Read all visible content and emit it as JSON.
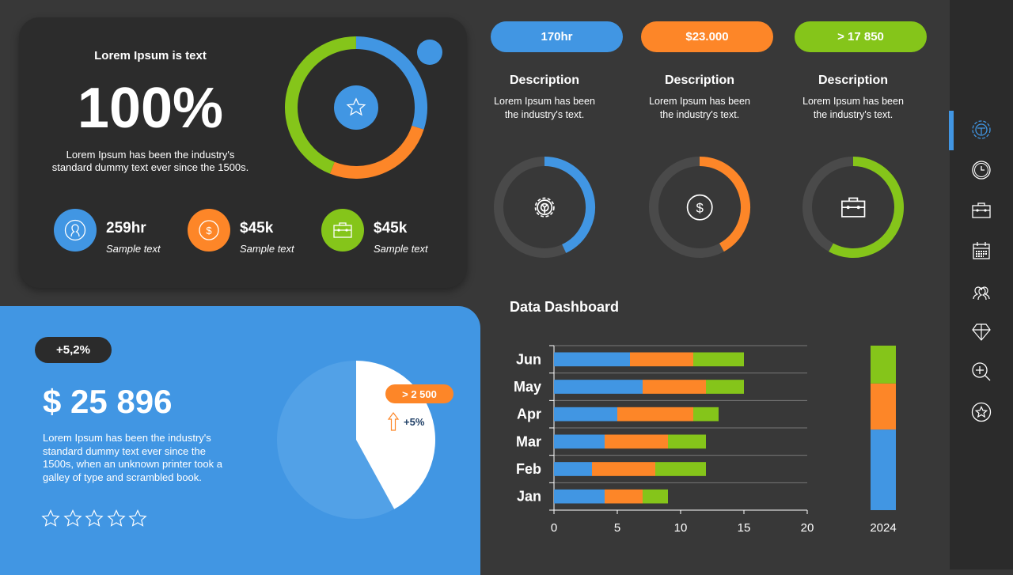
{
  "colors": {
    "blue": "#4196e3",
    "orange": "#fd8628",
    "green": "#85c51a",
    "track": "#4a4a4a"
  },
  "hero": {
    "title": "Lorem Ipsum is text",
    "value": "100%",
    "desc_line1": "Lorem Ipsum has been the industry's",
    "desc_line2": "standard dummy text ever since the 1500s.",
    "icon": "star-icon",
    "donut": {
      "blue": 0.3,
      "orange": 0.26,
      "green": 0.44
    }
  },
  "kpis": [
    {
      "icon": "user-icon",
      "value": "259hr",
      "label": "Sample text",
      "color": "#4196e3"
    },
    {
      "icon": "dollar-icon",
      "value": "$45k",
      "label": "Sample text",
      "color": "#fd8628"
    },
    {
      "icon": "briefcase-icon",
      "value": "$45k",
      "label": "Sample text",
      "color": "#85c51a"
    }
  ],
  "stats": [
    {
      "pill": "170hr",
      "title": "Description",
      "line1": "Lorem Ipsum has been",
      "line2": "the industry's text.",
      "icon": "gear-icon",
      "color": "#4196e3",
      "fraction": 0.43
    },
    {
      "pill": "$23.000",
      "title": "Description",
      "line1": "Lorem Ipsum has been",
      "line2": "the industry's text.",
      "icon": "dollar-icon",
      "color": "#fd8628",
      "fraction": 0.42
    },
    {
      "pill": "> 17 850",
      "title": "Description",
      "line1": "Lorem Ipsum has been",
      "line2": "the industry's text.",
      "icon": "briefcase-icon",
      "color": "#85c51a",
      "fraction": 0.58
    }
  ],
  "promo": {
    "badge": "+5,2%",
    "amount": "$ 25 896",
    "line1": "Lorem Ipsum has been the industry's",
    "line2": "standard dummy text ever since the",
    "line3": "1500s, when an unknown printer took a",
    "line4": "galley of type and scrambled book.",
    "stars": 5,
    "pie_badge": "> 2 500",
    "pie_change": "+5%",
    "pie_fraction": 0.42
  },
  "chart_data": {
    "type": "bar",
    "orientation": "horizontal",
    "stacked": true,
    "title": "Data Dashboard",
    "categories": [
      "Jan",
      "Feb",
      "Mar",
      "Apr",
      "May",
      "Jun"
    ],
    "series": [
      {
        "color": "#4196e3",
        "values": [
          4,
          3,
          4,
          5,
          7,
          6
        ]
      },
      {
        "color": "#fd8628",
        "values": [
          3,
          5,
          5,
          6,
          5,
          5
        ]
      },
      {
        "color": "#85c51a",
        "values": [
          2,
          4,
          3,
          2,
          3,
          4
        ]
      }
    ],
    "xlim": [
      0,
      20
    ],
    "xticks": [
      "0",
      "5",
      "10",
      "15",
      "20"
    ],
    "grid": true,
    "summary": {
      "label": "2024",
      "blue": 0.49,
      "orange": 0.28,
      "green": 0.23
    }
  },
  "sidebar": {
    "items": [
      "steering-gear-icon",
      "clock-icon",
      "briefcase-icon",
      "calendar-icon",
      "users-icon",
      "diamond-icon",
      "zoom-in-icon",
      "star-icon"
    ],
    "active": 0
  }
}
